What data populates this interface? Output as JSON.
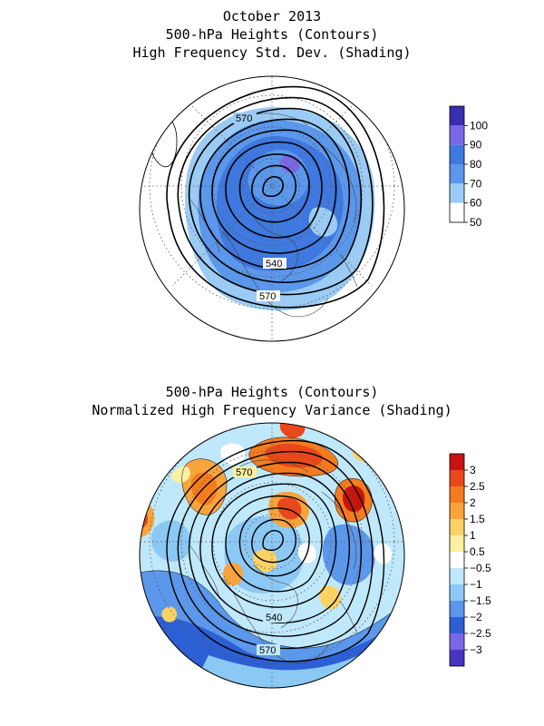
{
  "figure": {
    "top_title_lines": [
      "October 2013",
      "500-hPa Heights (Contours)",
      "High Frequency Std. Dev. (Shading)"
    ],
    "bottom_title_lines": [
      "500-hPa Heights (Contours)",
      "Normalized High Frequency Variance (Shading)"
    ]
  },
  "top_map": {
    "contour_labels": [
      "570",
      "540",
      "570"
    ],
    "colorbar": {
      "labels": [
        "100",
        "90",
        "80",
        "70",
        "60",
        "50"
      ],
      "colors": [
        "#3a2db0",
        "#7a67e6",
        "#3f78de",
        "#5b97ea",
        "#9bcbf4",
        "#ffffff"
      ]
    }
  },
  "bottom_map": {
    "contour_labels": [
      "570",
      "540",
      "570"
    ],
    "colorbar": {
      "labels": [
        "3",
        "2.5",
        "2",
        "1.5",
        "1",
        "0.5",
        "−0.5",
        "−1",
        "−1.5",
        "−2",
        "−2.5",
        "−3"
      ],
      "colors": [
        "#c81410",
        "#e8481c",
        "#f57c1e",
        "#f8a43c",
        "#fbd266",
        "#fdf0a0",
        "#ffffff",
        "#bfe8fb",
        "#8cc8f4",
        "#5b97ea",
        "#2d5fd4",
        "#7a67e6",
        "#4a35c0"
      ]
    }
  }
}
